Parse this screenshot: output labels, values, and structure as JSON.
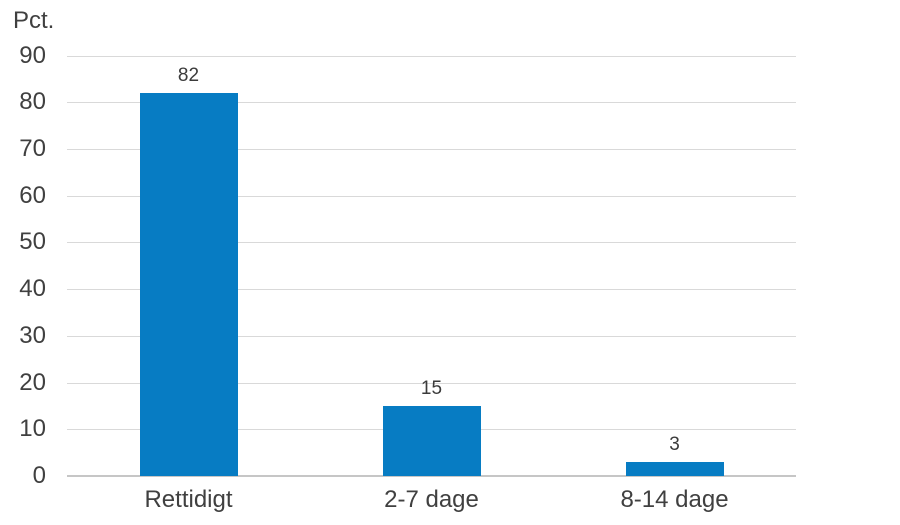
{
  "chart_data": {
    "type": "bar",
    "title": "",
    "ylabel": "Pct.",
    "xlabel": "",
    "categories": [
      "Rettidigt",
      "2-7 dage",
      "8-14 dage"
    ],
    "values": [
      82,
      15,
      3
    ],
    "data_labels": [
      "82",
      "15",
      "3"
    ],
    "ylim": [
      0,
      90
    ],
    "yticks": [
      0,
      10,
      20,
      30,
      40,
      50,
      60,
      70,
      80,
      90
    ],
    "grid": "horizontal",
    "legend": "none",
    "bar_color": "#077cc3",
    "gridline_color": "#d9d9d9",
    "axis_line_color": "#c6c6c6",
    "text_color": "#404040"
  }
}
